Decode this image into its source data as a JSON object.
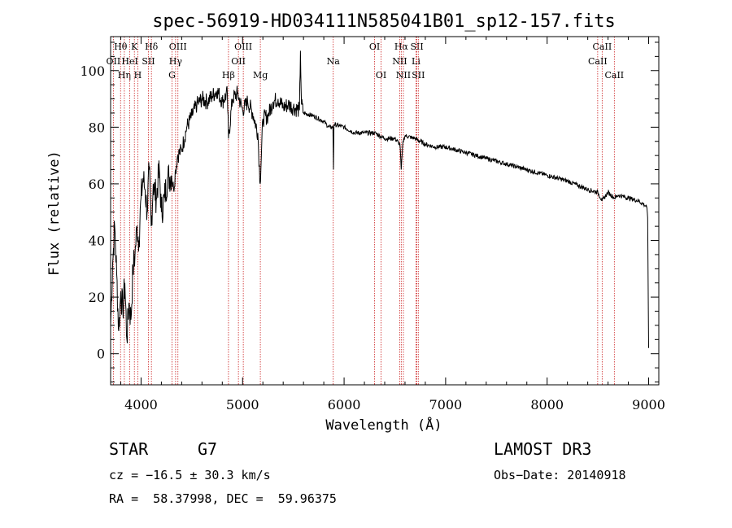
{
  "chart_data": {
    "type": "line",
    "title": "spec-56919-HD034111N585041B01_sp12-157.fits",
    "xlabel": "Wavelength (Å)",
    "ylabel": "Flux (relative)",
    "xlim": [
      3700,
      9100
    ],
    "ylim": [
      -11,
      112
    ],
    "xticks": [
      4000,
      5000,
      6000,
      7000,
      8000,
      9000
    ],
    "yticks": [
      0,
      20,
      40,
      60,
      80,
      100
    ],
    "series": [
      {
        "name": "flux",
        "x": [
          3700,
          3720,
          3740,
          3760,
          3780,
          3800,
          3820,
          3840,
          3860,
          3880,
          3900,
          3920,
          3940,
          3960,
          3980,
          4000,
          4020,
          4040,
          4060,
          4080,
          4100,
          4120,
          4150,
          4180,
          4200,
          4230,
          4260,
          4300,
          4320,
          4340,
          4360,
          4400,
          4450,
          4500,
          4550,
          4600,
          4650,
          4700,
          4750,
          4800,
          4850,
          4861,
          4900,
          4950,
          5000,
          5050,
          5100,
          5150,
          5173,
          5200,
          5250,
          5300,
          5350,
          5400,
          5450,
          5500,
          5560,
          5570,
          5580,
          5600,
          5700,
          5800,
          5850,
          5890,
          5895,
          5900,
          6000,
          6100,
          6200,
          6300,
          6400,
          6500,
          6550,
          6563,
          6580,
          6600,
          6700,
          6800,
          6900,
          7000,
          7200,
          7400,
          7600,
          7800,
          8000,
          8200,
          8400,
          8500,
          8542,
          8560,
          8600,
          8662,
          8700,
          8800,
          8900,
          8980,
          8990,
          9000
        ],
        "values": [
          10,
          32,
          45,
          28,
          8,
          22,
          15,
          25,
          5,
          18,
          12,
          30,
          35,
          45,
          40,
          55,
          62,
          58,
          50,
          65,
          45,
          60,
          55,
          65,
          50,
          55,
          62,
          63,
          58,
          65,
          70,
          72,
          80,
          84,
          88,
          90,
          89,
          91,
          93,
          89,
          92,
          76,
          90,
          92,
          86,
          89,
          85,
          78,
          60,
          83,
          84,
          89,
          90,
          87,
          88,
          87,
          86,
          107,
          88,
          85,
          84,
          82,
          80,
          80,
          65,
          81,
          80,
          78,
          78,
          78,
          76,
          76,
          74,
          65,
          75,
          77,
          76,
          74,
          73,
          73,
          71,
          69,
          67,
          65,
          63,
          61,
          58,
          57,
          54,
          55,
          57,
          55,
          56,
          55,
          54,
          52,
          48,
          2
        ]
      }
    ],
    "lines": [
      {
        "name": "Hθ",
        "wavelength": 3798,
        "row": 0
      },
      {
        "name": "OII",
        "wavelength": 3727,
        "row": 1
      },
      {
        "name": "Hη",
        "wavelength": 3835,
        "row": 2
      },
      {
        "name": "HeI",
        "wavelength": 3889,
        "row": 1
      },
      {
        "name": "K",
        "wavelength": 3934,
        "row": 0
      },
      {
        "name": "H",
        "wavelength": 3968,
        "row": 2
      },
      {
        "name": "SII",
        "wavelength": 4072,
        "row": 1
      },
      {
        "name": "Hδ",
        "wavelength": 4102,
        "row": 0
      },
      {
        "name": "OIII",
        "wavelength": 4363,
        "row": 0
      },
      {
        "name": "Hγ",
        "wavelength": 4340,
        "row": 1
      },
      {
        "name": "G",
        "wavelength": 4305,
        "row": 2
      },
      {
        "name": "Hβ",
        "wavelength": 4861,
        "row": 2
      },
      {
        "name": "OIII",
        "wavelength": 5007,
        "row": 0
      },
      {
        "name": "OII",
        "wavelength": 4959,
        "row": 1
      },
      {
        "name": "Mg",
        "wavelength": 5175,
        "row": 2
      },
      {
        "name": "Na",
        "wavelength": 5893,
        "row": 1
      },
      {
        "name": "OI",
        "wavelength": 6300,
        "row": 0
      },
      {
        "name": "OI",
        "wavelength": 6364,
        "row": 2
      },
      {
        "name": "Hα",
        "wavelength": 6563,
        "row": 0
      },
      {
        "name": "NII",
        "wavelength": 6548,
        "row": 1
      },
      {
        "name": "NII",
        "wavelength": 6584,
        "row": 2
      },
      {
        "name": "SII",
        "wavelength": 6717,
        "row": 0
      },
      {
        "name": "Li",
        "wavelength": 6708,
        "row": 1
      },
      {
        "name": "SII",
        "wavelength": 6731,
        "row": 2
      },
      {
        "name": "CaII",
        "wavelength": 8542,
        "row": 0
      },
      {
        "name": "CaII",
        "wavelength": 8498,
        "row": 1
      },
      {
        "name": "CaII",
        "wavelength": 8662,
        "row": 2
      }
    ]
  },
  "info": {
    "object_class": "STAR",
    "subclass": "G7",
    "survey": "LAMOST DR3",
    "redshift": "cz = −16.5 ± 30.3 km/s",
    "obs_date": "Obs−Date: 20140918",
    "coords": "RA =  58.37998, DEC =  59.96375"
  },
  "colors": {
    "line_marker": "#cc2222",
    "spectrum": "#000000"
  }
}
